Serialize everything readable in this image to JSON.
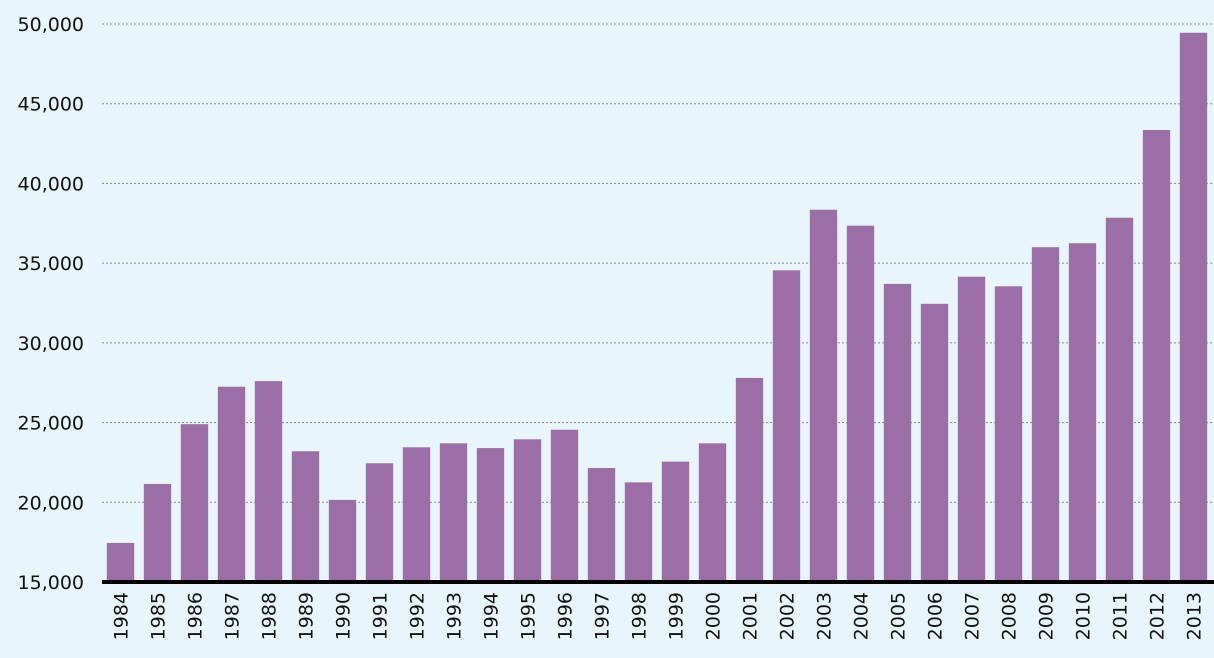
{
  "chart_data": {
    "type": "bar",
    "categories": [
      "1984",
      "1985",
      "1986",
      "1987",
      "1988",
      "1989",
      "1990",
      "1991",
      "1992",
      "1993",
      "1994",
      "1995",
      "1996",
      "1997",
      "1998",
      "1999",
      "2000",
      "2001",
      "2002",
      "2003",
      "2004",
      "2005",
      "2006",
      "2007",
      "2008",
      "2009",
      "2010",
      "2011",
      "2012",
      "2013"
    ],
    "values": [
      17450,
      21150,
      24900,
      27250,
      27600,
      23200,
      20150,
      22450,
      23450,
      23700,
      23400,
      23950,
      24550,
      22150,
      21250,
      22550,
      23700,
      27800,
      34550,
      38350,
      37350,
      33700,
      32450,
      34150,
      33550,
      36000,
      36250,
      37850,
      43350,
      49450
    ],
    "color": "#9b6fa6",
    "ylim": [
      15000,
      50000
    ],
    "yticks": [
      {
        "value": 15000,
        "label": "15,000"
      },
      {
        "value": 20000,
        "label": "20,000"
      },
      {
        "value": 25000,
        "label": "25,000"
      },
      {
        "value": 30000,
        "label": "30,000"
      },
      {
        "value": 35000,
        "label": "35,000"
      },
      {
        "value": 40000,
        "label": "40,000"
      },
      {
        "value": 45000,
        "label": "45,000"
      },
      {
        "value": 50000,
        "label": "50,000"
      }
    ],
    "grid": true
  }
}
